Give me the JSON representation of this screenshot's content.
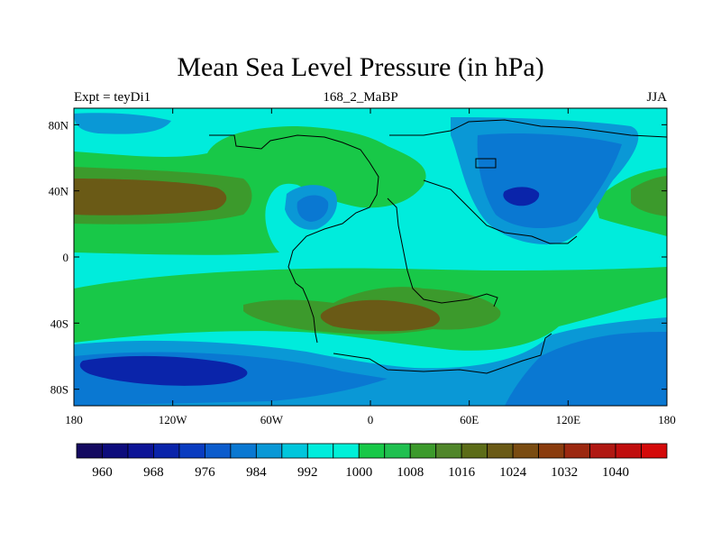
{
  "title": "Mean Sea Level Pressure (in hPa)",
  "subtitle_left": "Expt = teyDi1",
  "subtitle_center": "168_2_MaBP",
  "subtitle_right": "JJA",
  "chart_data": {
    "type": "contour_map",
    "variable": "Mean Sea Level Pressure",
    "units": "hPa",
    "x_range": [
      -180,
      180
    ],
    "y_range": [
      -90,
      90
    ],
    "lon_ticks": [
      "180",
      "120W",
      "60W",
      "0",
      "60E",
      "120E",
      "180"
    ],
    "lat_ticks": [
      "80N",
      "40N",
      "0",
      "40S",
      "80S"
    ],
    "colorbar_labels": [
      "960",
      "968",
      "976",
      "984",
      "992",
      "1000",
      "1008",
      "1016",
      "1024",
      "1032",
      "1040"
    ],
    "colorbar_colors": [
      "#140a60",
      "#0d0c7c",
      "#0d1496",
      "#0a24aa",
      "#0a3cc0",
      "#0c5ccc",
      "#0a78d2",
      "#0a98d6",
      "#00c6dc",
      "#00ecdc",
      "#00f0d8",
      "#18c848",
      "#20c050",
      "#3c9a2c",
      "#50862a",
      "#5c6c18",
      "#6a5a16",
      "#7a4c12",
      "#8a3c0e",
      "#9c2810",
      "#b01812",
      "#c00e0e",
      "#d40a0a"
    ],
    "colorbar_start_level": 956,
    "colorbar_step": 4
  }
}
